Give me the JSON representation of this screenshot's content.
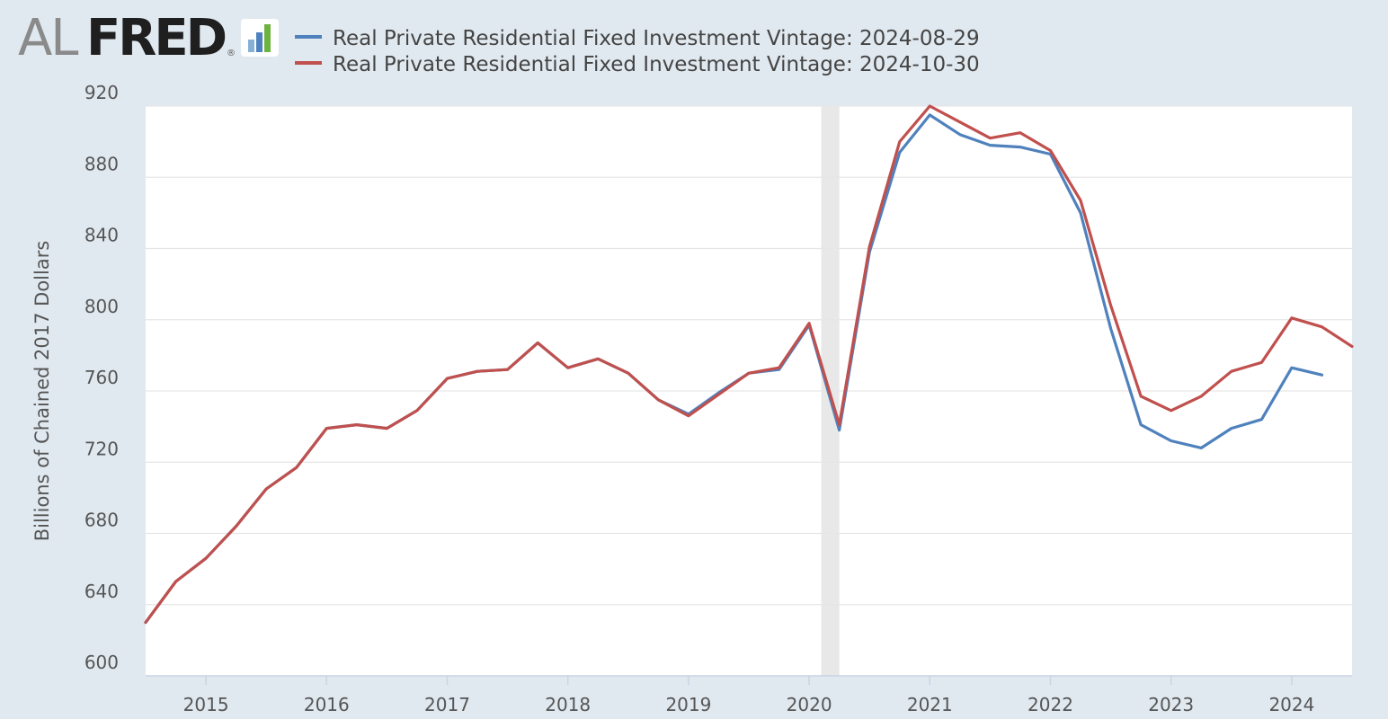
{
  "logo": {
    "part1": "AL",
    "part2": "FRED",
    "mark": "®",
    "icon": "fred-bars-icon"
  },
  "chart_data": {
    "type": "line",
    "title": "",
    "xlabel": "",
    "ylabel": "Billions of Chained 2017 Dollars",
    "ylim": [
      600,
      920
    ],
    "xlim": [
      2014.5,
      2024.5
    ],
    "yticks": [
      "600",
      "640",
      "680",
      "720",
      "760",
      "800",
      "840",
      "880",
      "920"
    ],
    "xticks": [
      "2015",
      "2016",
      "2017",
      "2018",
      "2019",
      "2020",
      "2021",
      "2022",
      "2023",
      "2024"
    ],
    "grid": true,
    "recession": {
      "start": 2020.1,
      "end": 2020.25,
      "color": "#e8e8e8"
    },
    "series": [
      {
        "name": "Real Private Residential Fixed Investment Vintage: 2024-08-29",
        "color": "#4f81bd",
        "x": [
          2014.5,
          2014.75,
          2015,
          2015.25,
          2015.5,
          2015.75,
          2016,
          2016.25,
          2016.5,
          2016.75,
          2017,
          2017.25,
          2017.5,
          2017.75,
          2018,
          2018.25,
          2018.5,
          2018.75,
          2019,
          2019.25,
          2019.5,
          2019.75,
          2020,
          2020.25,
          2020.5,
          2020.75,
          2021,
          2021.25,
          2021.5,
          2021.75,
          2022,
          2022.25,
          2022.5,
          2022.75,
          2023,
          2023.25,
          2023.5,
          2023.75,
          2024,
          2024.25
        ],
        "values": [
          630,
          653,
          666,
          684,
          705,
          717,
          739,
          741,
          739,
          749,
          767,
          771,
          772,
          787,
          773,
          778,
          770,
          755,
          747,
          759,
          770,
          772,
          797,
          738,
          838,
          894,
          915,
          904,
          898,
          897,
          893,
          860,
          795,
          741,
          732,
          728,
          739,
          744,
          773,
          769
        ]
      },
      {
        "name": "Real Private Residential Fixed Investment Vintage: 2024-10-30",
        "color": "#c0504d",
        "x": [
          2014.5,
          2014.75,
          2015,
          2015.25,
          2015.5,
          2015.75,
          2016,
          2016.25,
          2016.5,
          2016.75,
          2017,
          2017.25,
          2017.5,
          2017.75,
          2018,
          2018.25,
          2018.5,
          2018.75,
          2019,
          2019.25,
          2019.5,
          2019.75,
          2020,
          2020.25,
          2020.5,
          2020.75,
          2021,
          2021.25,
          2021.5,
          2021.75,
          2022,
          2022.25,
          2022.5,
          2022.75,
          2023,
          2023.25,
          2023.5,
          2023.75,
          2024,
          2024.25,
          2024.5
        ],
        "values": [
          630,
          653,
          666,
          684,
          705,
          717,
          739,
          741,
          739,
          749,
          767,
          771,
          772,
          787,
          773,
          778,
          770,
          755,
          746,
          758,
          770,
          773,
          798,
          741,
          841,
          900,
          920,
          911,
          902,
          905,
          895,
          867,
          808,
          757,
          749,
          757,
          771,
          776,
          801,
          796,
          785
        ]
      }
    ]
  }
}
